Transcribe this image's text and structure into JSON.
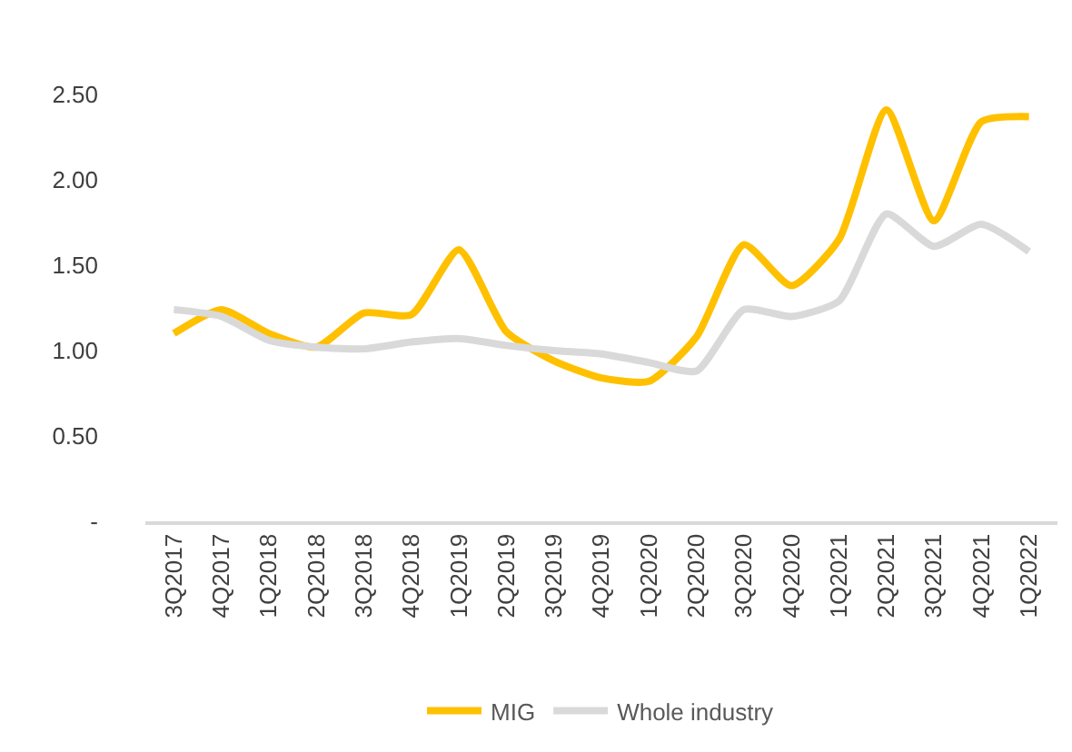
{
  "chart_data": {
    "type": "line",
    "categories": [
      "3Q2017",
      "4Q2017",
      "1Q2018",
      "2Q2018",
      "3Q2018",
      "4Q2018",
      "1Q2019",
      "2Q2019",
      "3Q2019",
      "4Q2019",
      "1Q2020",
      "2Q2020",
      "3Q2020",
      "4Q2020",
      "1Q2021",
      "2Q2021",
      "3Q2021",
      "4Q2021",
      "1Q2022"
    ],
    "series": [
      {
        "name": "MIG",
        "color": "#ffc000",
        "values": [
          1.1,
          1.24,
          1.1,
          1.02,
          1.22,
          1.21,
          1.59,
          1.11,
          0.94,
          0.84,
          0.82,
          1.08,
          1.62,
          1.38,
          1.65,
          2.41,
          1.76,
          2.34,
          2.37
        ]
      },
      {
        "name": "Whole industry",
        "color": "#d9d9d9",
        "values": [
          1.24,
          1.2,
          1.06,
          1.02,
          1.01,
          1.05,
          1.07,
          1.03,
          1.0,
          0.98,
          0.93,
          0.88,
          1.24,
          1.2,
          1.29,
          1.8,
          1.61,
          1.74,
          1.58
        ]
      }
    ],
    "ylim": [
      0,
      2.5
    ],
    "yticks": [
      {
        "value": 0,
        "label": "-"
      },
      {
        "value": 0.5,
        "label": "0.50"
      },
      {
        "value": 1,
        "label": "1.00"
      },
      {
        "value": 1.5,
        "label": "1.50"
      },
      {
        "value": 2,
        "label": "2.00"
      },
      {
        "value": 2.5,
        "label": "2.50"
      }
    ],
    "grid": false,
    "legend": "bottom",
    "marker": "none",
    "line_style": "solid"
  }
}
